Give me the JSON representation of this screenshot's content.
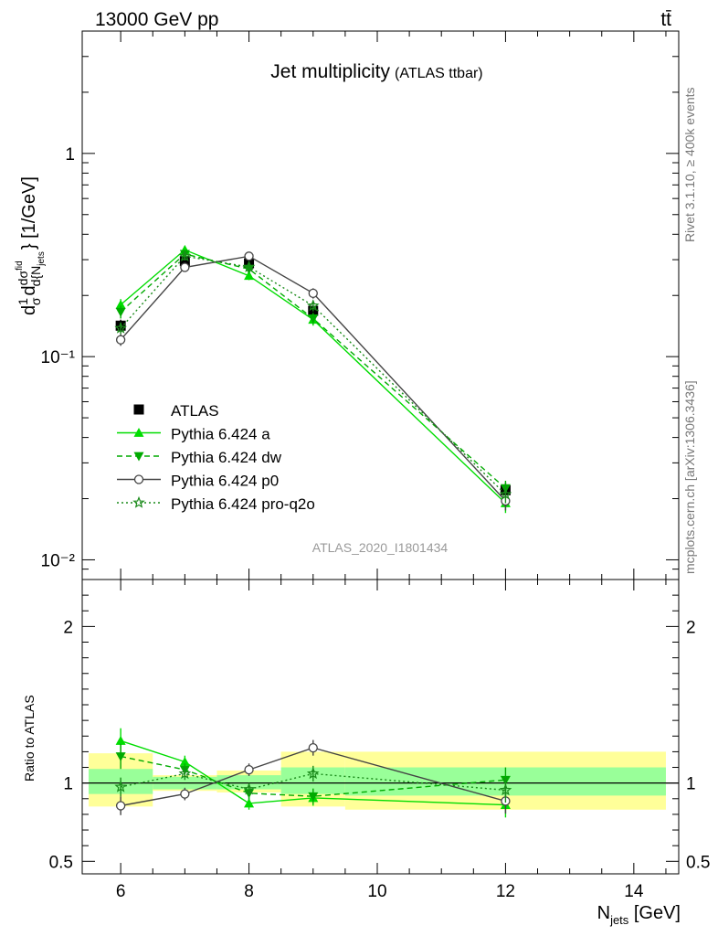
{
  "header": {
    "energy_label": "13000 GeV pp",
    "process_label": "tt̄"
  },
  "side_labels": {
    "rivet": "Rivet 3.1.10, ≥ 400k events",
    "mcplots": "mcplots.cern.ch [arXiv:1306.3436]"
  },
  "chart_data": [
    {
      "type": "line",
      "title": "Jet multiplicity",
      "subtitle": "(ATLAS ttbar)",
      "analysis_tag": "ATLAS_2020_I1801434",
      "ylabel": "d(1/σ dσ^fid/d{N_jets}) [1/GeV]",
      "yscale": "log",
      "ylim": [
        0.008,
        4
      ],
      "xlim": [
        5.4,
        14.7
      ],
      "y_ticks": [
        {
          "value": 1,
          "label": "1"
        },
        {
          "value": 0.1,
          "label": "10⁻¹"
        },
        {
          "value": 0.01,
          "label": "10⁻²"
        }
      ],
      "legend_position": "bottom-left",
      "x": [
        6,
        7,
        8,
        9,
        12
      ],
      "data_bins": [
        [
          5.5,
          6.5
        ],
        [
          6.5,
          7.5
        ],
        [
          7.5,
          8.5
        ],
        [
          8.5,
          9.5
        ],
        [
          9.5,
          14.5
        ]
      ],
      "series": [
        {
          "name": "ATLAS",
          "color": "#000000",
          "marker": "square",
          "line": "none",
          "values": [
            0.142,
            0.295,
            0.288,
            0.168,
            0.022
          ],
          "errors": [
            0.01,
            0.015,
            0.015,
            0.01,
            0.002
          ]
        },
        {
          "name": "Pythia 6.424 a",
          "color": "#00dd00",
          "marker": "triangle-up",
          "line": "solid",
          "values": [
            0.18,
            0.335,
            0.25,
            0.152,
            0.019
          ],
          "errors": [
            0.012,
            0.015,
            0.012,
            0.01,
            0.002
          ]
        },
        {
          "name": "Pythia 6.424 dw",
          "color": "#00aa00",
          "marker": "triangle-down",
          "line": "dashed",
          "values": [
            0.166,
            0.32,
            0.27,
            0.154,
            0.0225
          ],
          "errors": [
            0.012,
            0.015,
            0.012,
            0.01,
            0.002
          ]
        },
        {
          "name": "Pythia 6.424 p0",
          "color": "#444444",
          "marker": "circle-open",
          "line": "solid",
          "values": [
            0.121,
            0.275,
            0.312,
            0.205,
            0.0195
          ],
          "errors": [
            0.008,
            0.014,
            0.014,
            0.012,
            0.002
          ]
        },
        {
          "name": "Pythia 6.424 pro-q2o",
          "color": "#1a8a1a",
          "marker": "star-open",
          "line": "dotted",
          "values": [
            0.138,
            0.312,
            0.276,
            0.178,
            0.021
          ],
          "errors": [
            0.009,
            0.015,
            0.013,
            0.011,
            0.002
          ]
        }
      ]
    },
    {
      "type": "line",
      "ylabel": "Ratio to ATLAS",
      "xlabel": "N_jets [GeV]",
      "ylim": [
        0.42,
        2.3
      ],
      "xlim": [
        5.4,
        14.7
      ],
      "y_ticks": [
        {
          "value": 0.5,
          "label": "0.5"
        },
        {
          "value": 1,
          "label": "1"
        },
        {
          "value": 2,
          "label": "2"
        }
      ],
      "x_ticks": [
        {
          "value": 6,
          "label": "6"
        },
        {
          "value": 8,
          "label": "8"
        },
        {
          "value": 10,
          "label": "10"
        },
        {
          "value": 12,
          "label": "12"
        },
        {
          "value": 14,
          "label": "14"
        }
      ],
      "bands": [
        {
          "bin": [
            5.5,
            6.5
          ],
          "inner": [
            0.93,
            1.09
          ],
          "outer": [
            0.85,
            1.19
          ]
        },
        {
          "bin": [
            6.5,
            7.5
          ],
          "inner": [
            0.96,
            1.04
          ],
          "outer": [
            0.95,
            1.05
          ]
        },
        {
          "bin": [
            7.5,
            8.5
          ],
          "inner": [
            0.96,
            1.05
          ],
          "outer": [
            0.94,
            1.08
          ]
        },
        {
          "bin": [
            8.5,
            9.5
          ],
          "inner": [
            0.93,
            1.1
          ],
          "outer": [
            0.85,
            1.2
          ]
        },
        {
          "bin": [
            9.5,
            14.5
          ],
          "inner": [
            0.92,
            1.1
          ],
          "outer": [
            0.83,
            1.2
          ]
        }
      ],
      "x": [
        6,
        7,
        8,
        9,
        12
      ],
      "series": [
        {
          "name": "Pythia 6.424 a",
          "values": [
            1.27,
            1.135,
            0.87,
            0.905,
            0.86
          ],
          "errors": [
            0.08,
            0.04,
            0.04,
            0.05,
            0.08
          ]
        },
        {
          "name": "Pythia 6.424 dw",
          "values": [
            1.17,
            1.085,
            0.935,
            0.915,
            1.02
          ],
          "errors": [
            0.08,
            0.04,
            0.04,
            0.05,
            0.08
          ]
        },
        {
          "name": "Pythia 6.424 p0",
          "values": [
            0.855,
            0.93,
            1.085,
            1.225,
            0.885
          ],
          "errors": [
            0.06,
            0.04,
            0.04,
            0.05,
            0.08
          ]
        },
        {
          "name": "Pythia 6.424 pro-q2o",
          "values": [
            0.975,
            1.06,
            0.96,
            1.06,
            0.955
          ],
          "errors": [
            0.06,
            0.04,
            0.04,
            0.05,
            0.08
          ]
        }
      ]
    }
  ]
}
